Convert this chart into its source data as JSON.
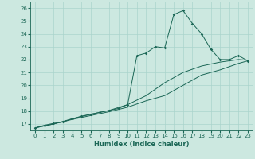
{
  "title": "",
  "xlabel": "Humidex (Indice chaleur)",
  "xlim": [
    -0.5,
    23.5
  ],
  "ylim": [
    16.5,
    26.5
  ],
  "xticks": [
    0,
    1,
    2,
    3,
    4,
    5,
    6,
    7,
    8,
    9,
    10,
    11,
    12,
    13,
    14,
    15,
    16,
    17,
    18,
    19,
    20,
    21,
    22,
    23
  ],
  "yticks": [
    17,
    18,
    19,
    20,
    21,
    22,
    23,
    24,
    25,
    26
  ],
  "bg_color": "#cce8e0",
  "grid_color": "#aad4cc",
  "line_color": "#1a6655",
  "series1": [
    [
      0,
      16.7
    ],
    [
      1,
      16.9
    ],
    [
      2,
      17.05
    ],
    [
      3,
      17.15
    ],
    [
      4,
      17.4
    ],
    [
      5,
      17.6
    ],
    [
      6,
      17.75
    ],
    [
      7,
      17.9
    ],
    [
      8,
      18.05
    ],
    [
      9,
      18.2
    ],
    [
      10,
      18.5
    ],
    [
      11,
      22.3
    ],
    [
      12,
      22.5
    ],
    [
      13,
      23.0
    ],
    [
      14,
      22.9
    ],
    [
      15,
      25.5
    ],
    [
      16,
      25.8
    ],
    [
      17,
      24.8
    ],
    [
      18,
      24.0
    ],
    [
      19,
      22.8
    ],
    [
      20,
      22.0
    ],
    [
      21,
      22.0
    ],
    [
      22,
      22.3
    ],
    [
      23,
      21.9
    ]
  ],
  "series2": [
    [
      0,
      16.7
    ],
    [
      2,
      17.0
    ],
    [
      4,
      17.4
    ],
    [
      6,
      17.75
    ],
    [
      8,
      18.05
    ],
    [
      10,
      18.5
    ],
    [
      12,
      19.2
    ],
    [
      14,
      20.2
    ],
    [
      16,
      21.0
    ],
    [
      18,
      21.5
    ],
    [
      20,
      21.8
    ],
    [
      22,
      22.0
    ],
    [
      23,
      21.95
    ]
  ],
  "series3": [
    [
      0,
      16.7
    ],
    [
      2,
      17.0
    ],
    [
      4,
      17.35
    ],
    [
      6,
      17.65
    ],
    [
      8,
      17.95
    ],
    [
      10,
      18.3
    ],
    [
      12,
      18.8
    ],
    [
      14,
      19.2
    ],
    [
      16,
      20.0
    ],
    [
      18,
      20.8
    ],
    [
      20,
      21.2
    ],
    [
      22,
      21.7
    ],
    [
      23,
      21.9
    ]
  ]
}
